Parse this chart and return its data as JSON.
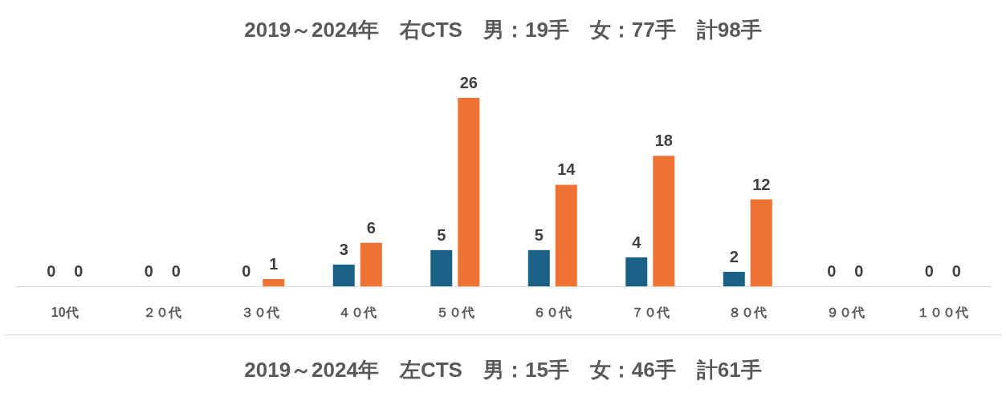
{
  "chart_data": {
    "type": "bar",
    "title": "2019～2024年　右CTS　男：19手　女：77手　計98手",
    "categories": [
      "10代",
      "２０代",
      "３０代",
      "４０代",
      "５０代",
      "６０代",
      "７０代",
      "８０代",
      "９０代",
      "１００代"
    ],
    "series": [
      {
        "color": "#1b6185",
        "values": [
          0,
          0,
          0,
          3,
          5,
          5,
          4,
          2,
          0,
          0
        ]
      },
      {
        "color": "#ee7232",
        "values": [
          0,
          0,
          1,
          6,
          26,
          14,
          18,
          12,
          0,
          0
        ]
      }
    ],
    "data_labels": true,
    "annotations": [
      "2019～2024年　左CTS　男：15手　女：46手　計61手"
    ]
  }
}
